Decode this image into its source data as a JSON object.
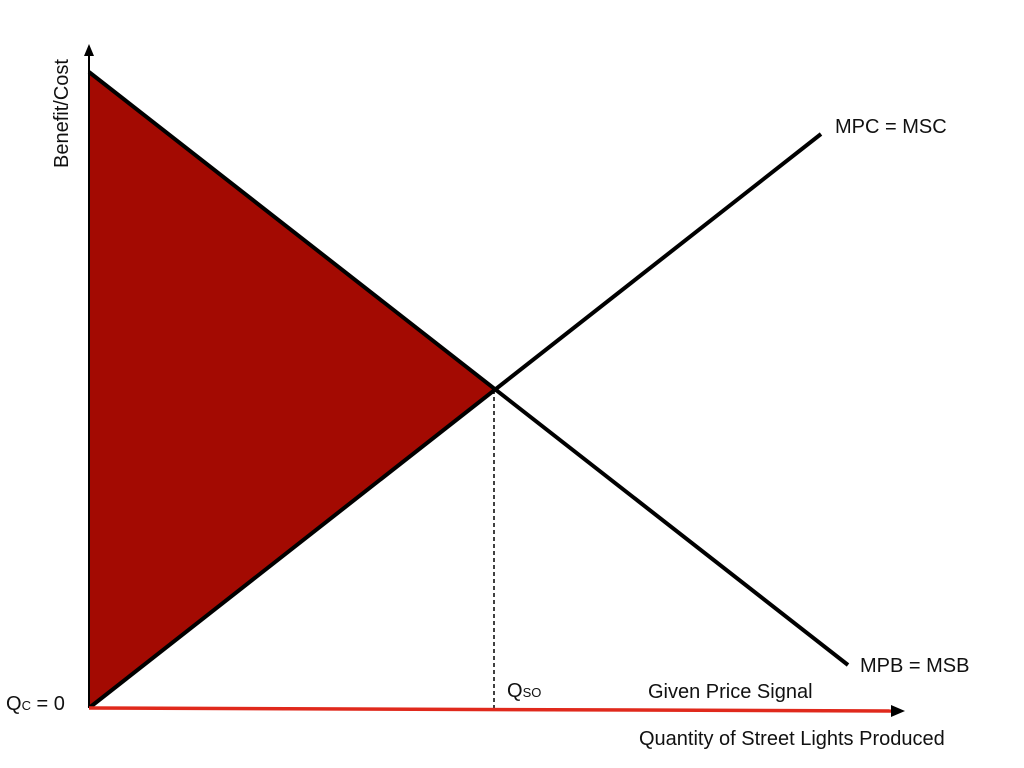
{
  "axes": {
    "y_label": "Benefit/Cost",
    "x_label": "Quantity of Street Lights Produced"
  },
  "curves": {
    "supply_label": "MPC = MSC",
    "demand_label": "MPB = MSB"
  },
  "quantities": {
    "competitive_main": "Q",
    "competitive_sub": "C",
    "competitive_value": " = 0",
    "social_optimum_main": "Q",
    "social_optimum_sub": "SO"
  },
  "price_signal_label": "Given Price Signal",
  "colors": {
    "shaded_area": "#a30a02",
    "price_signal_line": "#e0291c",
    "axis": "#000000",
    "curve": "#000000"
  },
  "icons": {
    "y_axis_arrow": "arrow-up-icon",
    "x_axis_arrow": "arrow-right-icon"
  }
}
